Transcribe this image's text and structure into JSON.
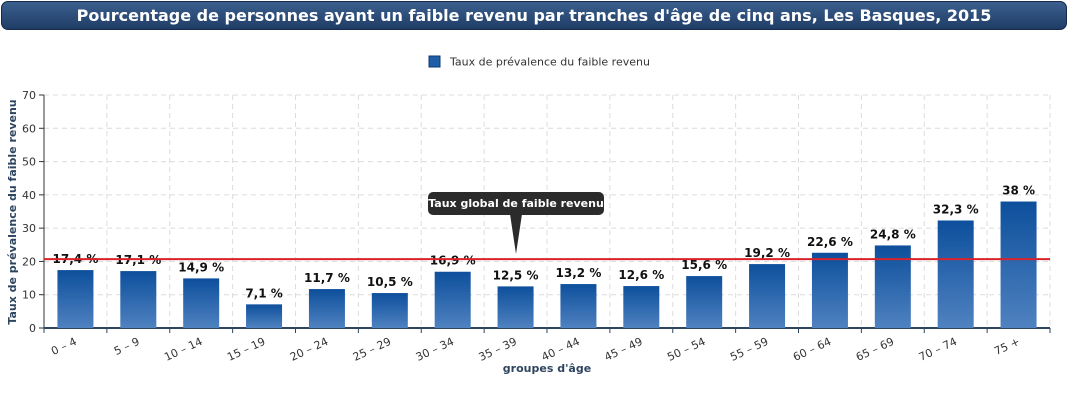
{
  "chart_data": {
    "type": "bar",
    "title": "Pourcentage de personnes ayant un faible revenu par tranches d'âge de cinq ans, Les Basques, 2015",
    "xlabel": "groupes d'âge",
    "ylabel": "Taux de prévalence du faible revenu",
    "ylim": [
      0,
      70
    ],
    "yticks": [
      0,
      10,
      20,
      30,
      40,
      50,
      60,
      70
    ],
    "grid": true,
    "legend_position": "top-center",
    "categories": [
      "0 – 4",
      "5 – 9",
      "10 – 14",
      "15 – 19",
      "20 – 24",
      "25 – 29",
      "30 – 34",
      "35 – 39",
      "40 – 44",
      "45 – 49",
      "50 – 54",
      "55 – 59",
      "60 – 64",
      "65 – 69",
      "70 – 74",
      "75 +"
    ],
    "series": [
      {
        "name": "Taux de prévalence du faible revenu",
        "values": [
          17.4,
          17.1,
          14.9,
          7.1,
          11.7,
          10.5,
          16.9,
          12.5,
          13.2,
          12.6,
          15.6,
          19.2,
          22.6,
          24.8,
          32.3,
          38
        ],
        "data_labels": [
          "17,4 %",
          "17,1 %",
          "14,9 %",
          "7,1 %",
          "11,7 %",
          "10,5 %",
          "16,9 %",
          "12,5 %",
          "13,2 %",
          "12,6 %",
          "15,6 %",
          "19,2 %",
          "22,6 %",
          "24,8 %",
          "32,3 %",
          "38 %"
        ],
        "color": "#1f5fa8"
      }
    ],
    "reference_line": {
      "value": 20.7,
      "label": "Taux global de faible revenu",
      "color": "#d9232b"
    }
  }
}
